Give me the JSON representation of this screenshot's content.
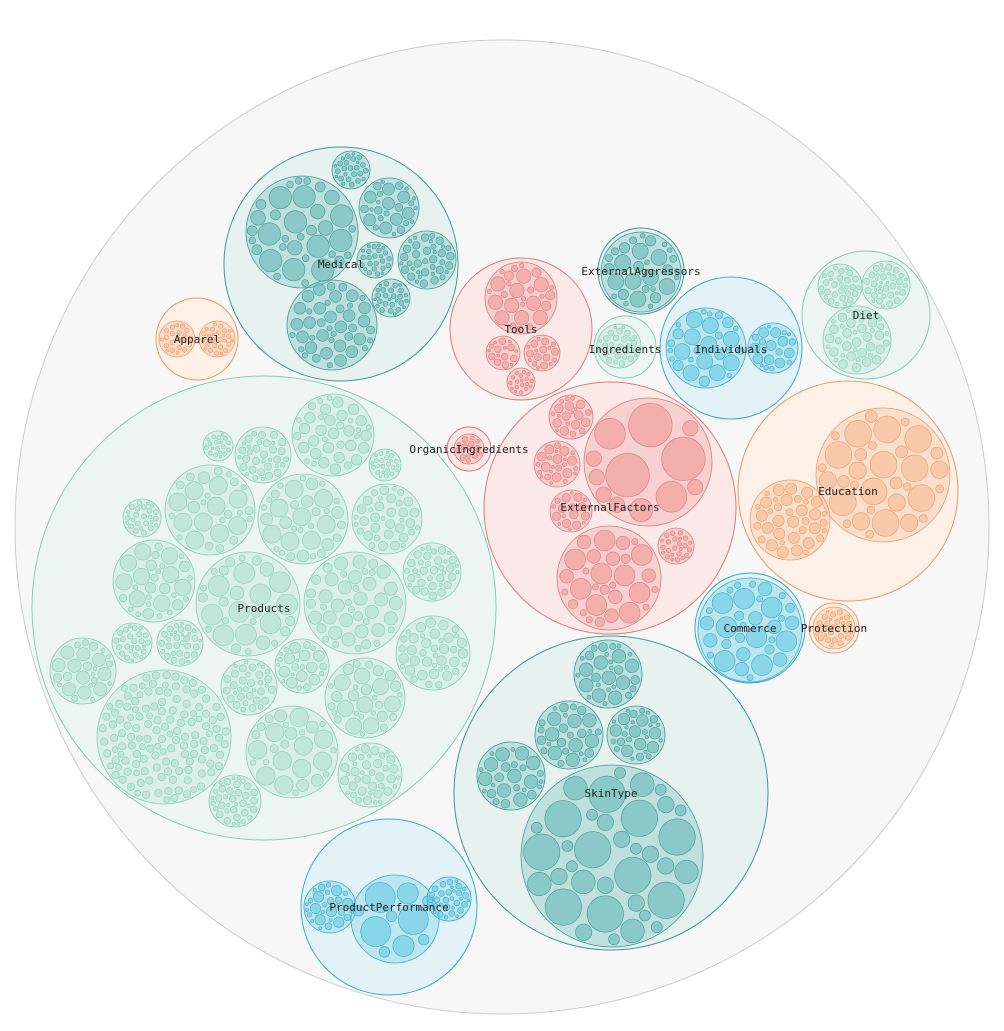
{
  "palette": {
    "teal_dark": {
      "fill": "#78c1bf",
      "stroke": "#3d9b98",
      "bg": "#e4efee"
    },
    "mint": {
      "fill": "#b9e4d6",
      "stroke": "#86cdb5",
      "bg": "#eaf4f1"
    },
    "salmon": {
      "fill": "#f2a3a3",
      "stroke": "#e07979",
      "bg": "#fbe7e6"
    },
    "orange": {
      "fill": "#f6c09e",
      "stroke": "#ee9a63",
      "bg": "#fdeee4"
    },
    "cyan": {
      "fill": "#77d0e6",
      "stroke": "#39adc9",
      "bg": "#e0f1f6"
    },
    "root": {
      "fill": "#f7f7f7",
      "stroke": "#cccccc"
    }
  },
  "root": {
    "name": "",
    "color": "root"
  },
  "groups": [
    {
      "id": "medical",
      "label": "Medical",
      "color": "teal_dark"
    },
    {
      "id": "apparel",
      "label": "Apparel",
      "color": "orange"
    },
    {
      "id": "tools",
      "label": "Tools",
      "color": "salmon"
    },
    {
      "id": "external-aggressors",
      "label": "ExternalAggressors",
      "color": "teal_dark"
    },
    {
      "id": "ingredients",
      "label": "Ingredients",
      "color": "mint"
    },
    {
      "id": "individuals",
      "label": "Individuals",
      "color": "cyan"
    },
    {
      "id": "diet",
      "label": "Diet",
      "color": "mint"
    },
    {
      "id": "organic-ingredients",
      "label": "OrganicIngredients",
      "color": "salmon"
    },
    {
      "id": "products",
      "label": "Products",
      "color": "mint"
    },
    {
      "id": "external-factors",
      "label": "ExternalFactors",
      "color": "salmon"
    },
    {
      "id": "education",
      "label": "Education",
      "color": "orange"
    },
    {
      "id": "commerce",
      "label": "Commerce",
      "color": "cyan"
    },
    {
      "id": "protection",
      "label": "Protection",
      "color": "orange"
    },
    {
      "id": "skin-type",
      "label": "SkinType",
      "color": "teal_dark"
    },
    {
      "id": "product-performance",
      "label": "ProductPerformance",
      "color": "cyan"
    }
  ]
}
